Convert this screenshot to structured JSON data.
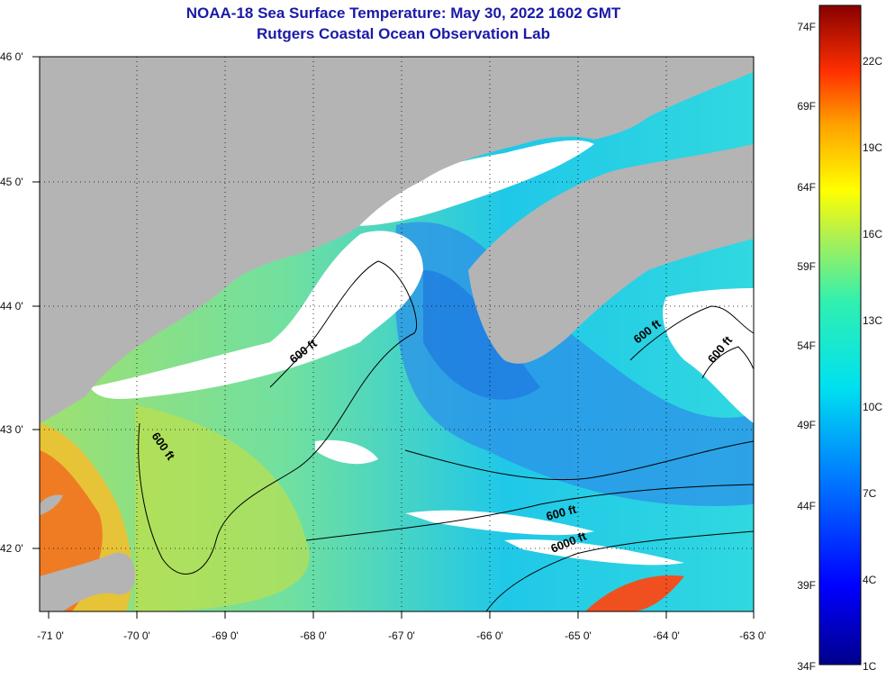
{
  "title_line1": "NOAA-18 Sea Surface Temperature:  May 30, 2022 1602 GMT",
  "title_line2": "Rutgers Coastal Ocean Observation Lab",
  "lat_labels": [
    "46 0'",
    "45 0'",
    "44 0'",
    "43 0'",
    "42 0'"
  ],
  "lon_labels": [
    "-71 0'",
    "-70 0'",
    "-69 0'",
    "-68 0'",
    "-67 0'",
    "-66 0'",
    "-65 0'",
    "-64 0'",
    "-63 0'"
  ],
  "contour_labels": [
    "600 ft",
    "600 ft",
    "600 ft",
    "600 ft",
    "600 ft",
    "6000 ft"
  ],
  "colorbar": {
    "fahrenheit": [
      "74F",
      "69F",
      "64F",
      "59F",
      "54F",
      "49F",
      "44F",
      "39F",
      "34F"
    ],
    "celsius": [
      "22C",
      "19C",
      "16C",
      "13C",
      "10C",
      "7C",
      "4C",
      "1C"
    ]
  },
  "colors": {
    "land": "#b4b4b4",
    "cloud": "#ffffff",
    "title": "#1a1aa8"
  }
}
